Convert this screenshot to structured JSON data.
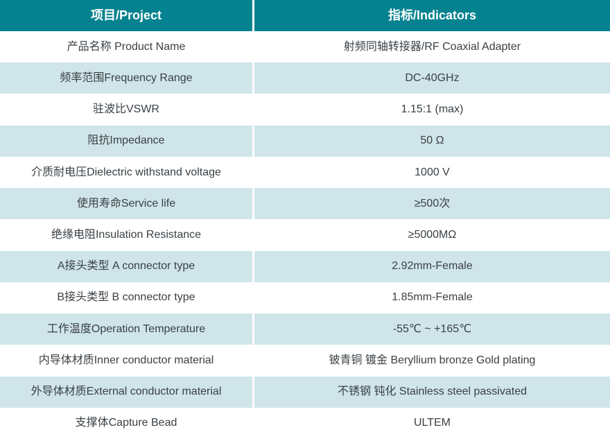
{
  "colors": {
    "header_bg": "#05828F",
    "header_text": "#FFFFFF",
    "row_bg": "#FFFFFF",
    "row_alt_bg": "#CFE5E9",
    "text": "#3A4045",
    "divider": "#FFFFFF"
  },
  "table": {
    "header": {
      "project": "项目/Project",
      "indicators": "指标/Indicators"
    },
    "rows": [
      {
        "project": "产品名称 Product Name",
        "indicator": "射频同轴转接器/RF Coaxial Adapter"
      },
      {
        "project": "频率范围Frequency Range",
        "indicator": "DC-40GHz"
      },
      {
        "project": "驻波比VSWR",
        "indicator": "1.15:1 (max)"
      },
      {
        "project": "阻抗Impedance",
        "indicator": "50 Ω"
      },
      {
        "project": "介质耐电压Dielectric withstand voltage",
        "indicator": "1000 V"
      },
      {
        "project": "使用寿命Service life",
        "indicator": "≥500次"
      },
      {
        "project": "绝缘电阻Insulation Resistance",
        "indicator": "≥5000MΩ"
      },
      {
        "project": "A接头类型 A connector type",
        "indicator": "2.92mm-Female"
      },
      {
        "project": "B接头类型 B connector type",
        "indicator": "1.85mm-Female"
      },
      {
        "project": "工作温度Operation Temperature",
        "indicator": "-55℃ ~ +165℃"
      },
      {
        "project": "内导体材质Inner conductor material",
        "indicator": "铍青铜 镀金 Beryllium bronze Gold plating"
      },
      {
        "project": "外导体材质External conductor material",
        "indicator": "不锈钢 钝化 Stainless steel passivated"
      },
      {
        "project": "支撑体Capture Bead",
        "indicator": "ULTEM"
      }
    ]
  }
}
